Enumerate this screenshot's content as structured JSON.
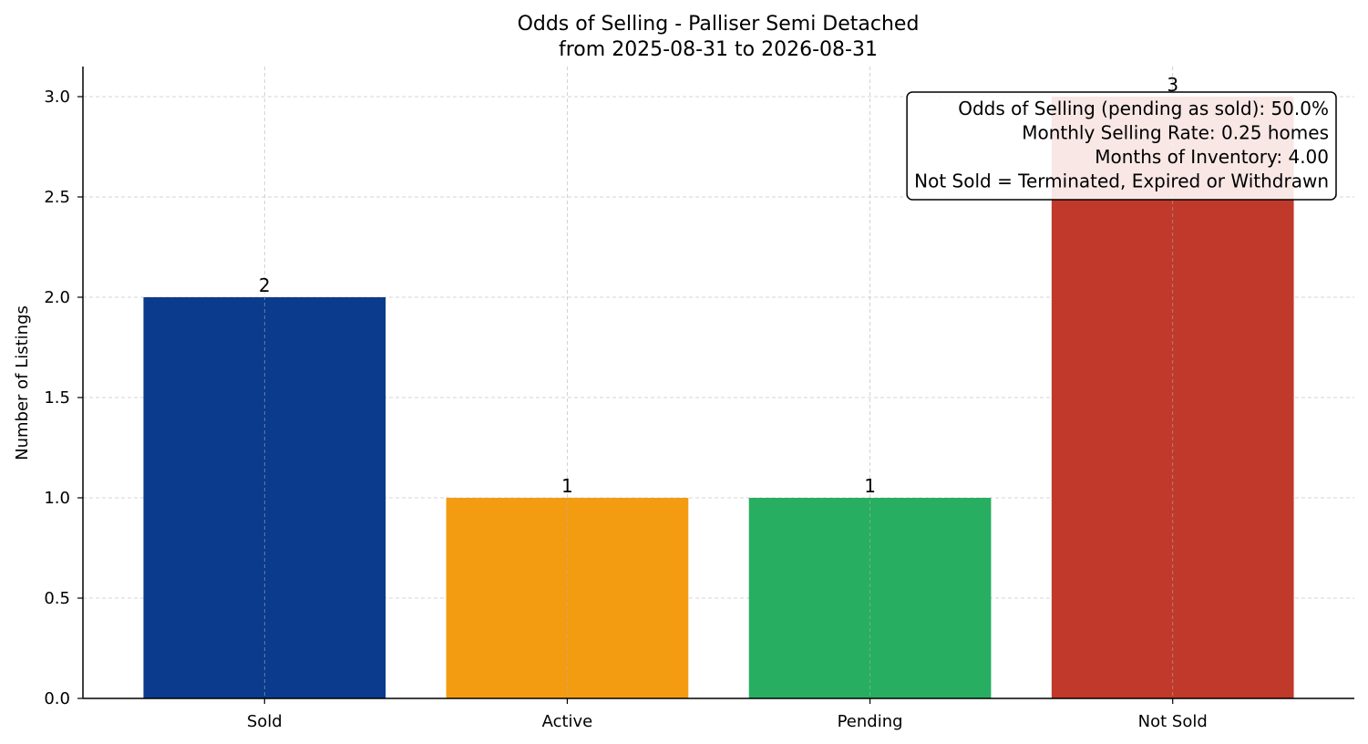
{
  "chart_data": {
    "type": "bar",
    "title": "Odds of Selling - Palliser Semi Detached",
    "subtitle": "from 2025-08-31 to 2026-08-31",
    "xlabel": "",
    "ylabel": "Number of Listings",
    "categories": [
      "Sold",
      "Active",
      "Pending",
      "Not Sold"
    ],
    "values": [
      2,
      1,
      1,
      3
    ],
    "value_labels": [
      "2",
      "1",
      "1",
      "3"
    ],
    "colors": [
      "#0b3b8c",
      "#f39c12",
      "#27ae60",
      "#c0392b"
    ],
    "ylim": [
      0,
      3.15
    ],
    "yticks": [
      0.0,
      0.5,
      1.0,
      1.5,
      2.0,
      2.5,
      3.0
    ],
    "ytick_labels": [
      "0.0",
      "0.5",
      "1.0",
      "1.5",
      "2.0",
      "2.5",
      "3.0"
    ],
    "grid": true,
    "annotation": {
      "placement": "top-right",
      "lines": [
        "Odds of Selling (pending as sold): 50.0%",
        "Monthly Selling Rate: 0.25 homes",
        "Months of Inventory: 4.00",
        "Not Sold = Terminated, Expired or Withdrawn"
      ]
    }
  }
}
